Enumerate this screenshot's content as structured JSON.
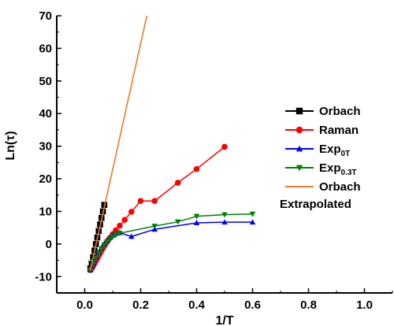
{
  "chart_data": {
    "type": "scatter",
    "xlabel": "1/T",
    "ylabel": "Ln(τ)",
    "xlim": [
      -0.1,
      1.1
    ],
    "ylim": [
      -15,
      70
    ],
    "xticks": [
      "0.0",
      "0.2",
      "0.4",
      "0.6",
      "0.8",
      "1.0"
    ],
    "xtick_values": [
      0,
      0.2,
      0.4,
      0.6,
      0.8,
      1.0
    ],
    "yticks": [
      "-10",
      "0",
      "10",
      "20",
      "30",
      "40",
      "50",
      "60",
      "70"
    ],
    "ytick_values": [
      -10,
      0,
      10,
      20,
      30,
      40,
      50,
      60,
      70
    ],
    "grid": false,
    "legend_position": "right",
    "series": [
      {
        "name": "Orbach",
        "legend_main": "Orbach",
        "legend_sub": "",
        "color": "#000000",
        "marker": "square",
        "line": true,
        "points": [
          [
            0.02,
            -7.5
          ],
          [
            0.025,
            -6
          ],
          [
            0.03,
            -4
          ],
          [
            0.035,
            -2
          ],
          [
            0.04,
            0
          ],
          [
            0.045,
            2
          ],
          [
            0.05,
            4
          ],
          [
            0.055,
            6
          ],
          [
            0.06,
            8
          ],
          [
            0.065,
            10
          ],
          [
            0.07,
            12
          ]
        ]
      },
      {
        "name": "Raman",
        "legend_main": "Raman",
        "legend_sub": "",
        "color": "#ff0000",
        "marker": "circle",
        "line": true,
        "points": [
          [
            0.02,
            -8
          ],
          [
            0.025,
            -7.5
          ],
          [
            0.03,
            -6.8
          ],
          [
            0.035,
            -6
          ],
          [
            0.04,
            -5.2
          ],
          [
            0.045,
            -4.4
          ],
          [
            0.05,
            -3.6
          ],
          [
            0.055,
            -2.8
          ],
          [
            0.06,
            -2
          ],
          [
            0.065,
            -1.3
          ],
          [
            0.07,
            -0.6
          ],
          [
            0.075,
            0.1
          ],
          [
            0.08,
            0.7
          ],
          [
            0.085,
            1.3
          ],
          [
            0.09,
            1.9
          ],
          [
            0.1,
            3
          ],
          [
            0.111,
            4.2
          ],
          [
            0.125,
            5.6
          ],
          [
            0.143,
            7.4
          ],
          [
            0.167,
            9.9
          ],
          [
            0.2,
            13.2
          ],
          [
            0.25,
            13.2
          ],
          [
            0.333,
            18.8
          ],
          [
            0.4,
            23
          ],
          [
            0.5,
            29.8
          ]
        ]
      },
      {
        "name": "Exp0T",
        "legend_main": "Exp",
        "legend_sub": "0T",
        "color": "#0000ff",
        "marker": "triangle-up",
        "line": true,
        "points": [
          [
            0.02,
            -8
          ],
          [
            0.025,
            -7
          ],
          [
            0.03,
            -6
          ],
          [
            0.035,
            -5
          ],
          [
            0.04,
            -4
          ],
          [
            0.05,
            -2.5
          ],
          [
            0.06,
            -1.2
          ],
          [
            0.07,
            0
          ],
          [
            0.08,
            1
          ],
          [
            0.09,
            2
          ],
          [
            0.1,
            2.7
          ],
          [
            0.111,
            3.2
          ],
          [
            0.125,
            3.5
          ],
          [
            0.167,
            2.3
          ],
          [
            0.25,
            4.5
          ],
          [
            0.4,
            6.5
          ],
          [
            0.5,
            6.7
          ],
          [
            0.6,
            6.7
          ]
        ]
      },
      {
        "name": "Exp0.3T",
        "legend_main": "Exp",
        "legend_sub": "0.3T",
        "color": "#008000",
        "marker": "triangle-down",
        "line": true,
        "points": [
          [
            0.02,
            -8
          ],
          [
            0.03,
            -6
          ],
          [
            0.04,
            -4.3
          ],
          [
            0.05,
            -2.8
          ],
          [
            0.06,
            -1.5
          ],
          [
            0.07,
            -0.3
          ],
          [
            0.08,
            0.7
          ],
          [
            0.09,
            1.5
          ],
          [
            0.1,
            2.2
          ],
          [
            0.111,
            2.8
          ],
          [
            0.125,
            3.3
          ],
          [
            0.25,
            5.5
          ],
          [
            0.333,
            6.8
          ],
          [
            0.4,
            8.5
          ],
          [
            0.5,
            9
          ],
          [
            0.6,
            9.2
          ]
        ]
      },
      {
        "name": "Orbach Extrapolated",
        "legend_main": "Orbach",
        "legend_sub": "",
        "legend_second_line": "Extrapolated",
        "color": "#f07a28",
        "marker": "none",
        "line": true,
        "points": [
          [
            0.02,
            -8
          ],
          [
            0.222,
            70
          ]
        ]
      }
    ]
  }
}
